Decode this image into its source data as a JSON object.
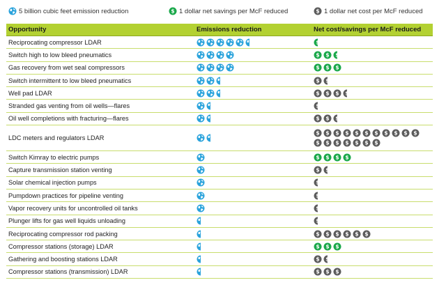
{
  "legend": {
    "emission_unit": "5 billion cubic feet emission reduction",
    "net_savings": "1 dollar net savings per McF reduced",
    "net_cost": "1 dollar net cost per McF reduced"
  },
  "colors": {
    "header_bg": "#b3d132",
    "row_line": "#c8dd6c",
    "globe": "#2aa3dc",
    "savings": "#1aa84a",
    "cost": "#5c5c5c"
  },
  "columns": [
    "Opportunity",
    "Emissions reduction",
    "Net cost/savings per McF reduced"
  ],
  "rows": [
    {
      "opportunity": "Reciprocating compressor LDAR",
      "emissions_units": 5.5,
      "savings": 0.5,
      "cost": 0
    },
    {
      "opportunity": "Switch high to low bleed pneumatics",
      "emissions_units": 4,
      "savings": 2.5,
      "cost": 0
    },
    {
      "opportunity": "Gas recovery from wet seal compressors",
      "emissions_units": 4,
      "savings": 3,
      "cost": 0
    },
    {
      "opportunity": "Switch intermittent to low bleed pneumatics",
      "emissions_units": 2.5,
      "savings": 0,
      "cost": 1.5
    },
    {
      "opportunity": "Well pad LDAR",
      "emissions_units": 2.5,
      "savings": 0,
      "cost": 3.5
    },
    {
      "opportunity": "Stranded gas venting from oil wells—flares",
      "emissions_units": 1.5,
      "savings": 0,
      "cost": 0.5
    },
    {
      "opportunity": "Oil well completions with fracturing—flares",
      "emissions_units": 1.5,
      "savings": 0,
      "cost": 2.5
    },
    {
      "opportunity": "LDC meters and regulators LDAR",
      "emissions_units": 1.5,
      "savings": 0,
      "cost": 18
    },
    {
      "opportunity": "Switch Kimray to electric pumps",
      "emissions_units": 1,
      "savings": 4,
      "cost": 0
    },
    {
      "opportunity": "Capture transmission station venting",
      "emissions_units": 1,
      "savings": 0,
      "cost": 1.5
    },
    {
      "opportunity": "Solar chemical injection pumps",
      "emissions_units": 1,
      "savings": 0,
      "cost": 0.5
    },
    {
      "opportunity": "Pumpdown practices for pipeline venting",
      "emissions_units": 1,
      "savings": 0,
      "cost": 0.5
    },
    {
      "opportunity": "Vapor recovery units for uncontrolled oil tanks",
      "emissions_units": 1,
      "savings": 0,
      "cost": 0.5
    },
    {
      "opportunity": "Plunger lifts for gas well liquids unloading",
      "emissions_units": 0.5,
      "savings": 0,
      "cost": 0.5
    },
    {
      "opportunity": "Reciprocating compressor rod packing",
      "emissions_units": 0.5,
      "savings": 0,
      "cost": 6
    },
    {
      "opportunity": "Compressor stations (storage) LDAR",
      "emissions_units": 0.5,
      "savings": 3,
      "cost": 0
    },
    {
      "opportunity": "Gathering and boosting stations LDAR",
      "emissions_units": 0.5,
      "savings": 0,
      "cost": 1.5
    },
    {
      "opportunity": "Compressor stations (transmission) LDAR",
      "emissions_units": 0.5,
      "savings": 0,
      "cost": 3
    }
  ]
}
